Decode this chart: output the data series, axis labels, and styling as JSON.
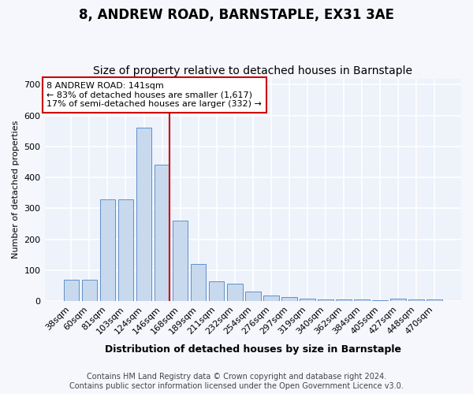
{
  "title": "8, ANDREW ROAD, BARNSTAPLE, EX31 3AE",
  "subtitle": "Size of property relative to detached houses in Barnstaple",
  "xlabel": "Distribution of detached houses by size in Barnstaple",
  "ylabel": "Number of detached properties",
  "categories": [
    "38sqm",
    "60sqm",
    "81sqm",
    "103sqm",
    "124sqm",
    "146sqm",
    "168sqm",
    "189sqm",
    "211sqm",
    "232sqm",
    "254sqm",
    "276sqm",
    "297sqm",
    "319sqm",
    "340sqm",
    "362sqm",
    "384sqm",
    "405sqm",
    "427sqm",
    "448sqm",
    "470sqm"
  ],
  "values": [
    70,
    70,
    330,
    330,
    560,
    440,
    260,
    120,
    65,
    55,
    30,
    18,
    12,
    8,
    6,
    5,
    4,
    3,
    8,
    4,
    5
  ],
  "bar_color": "#c8d9ee",
  "bar_edge_color": "#6090c8",
  "reference_line_index": 5,
  "annotation_line1": "8 ANDREW ROAD: 141sqm",
  "annotation_line2": "← 83% of detached houses are smaller (1,617)",
  "annotation_line3": "17% of semi-detached houses are larger (332) →",
  "annotation_box_color": "#ffffff",
  "annotation_box_edge_color": "#cc0000",
  "ref_line_color": "#cc0000",
  "ylim": [
    0,
    720
  ],
  "yticks": [
    0,
    100,
    200,
    300,
    400,
    500,
    600,
    700
  ],
  "footer_line1": "Contains HM Land Registry data © Crown copyright and database right 2024.",
  "footer_line2": "Contains public sector information licensed under the Open Government Licence v3.0.",
  "bg_color": "#edf2fb",
  "grid_color": "#ffffff",
  "title_fontsize": 12,
  "subtitle_fontsize": 10,
  "xlabel_fontsize": 9,
  "ylabel_fontsize": 8,
  "tick_fontsize": 8,
  "annotation_fontsize": 8,
  "footer_fontsize": 7
}
